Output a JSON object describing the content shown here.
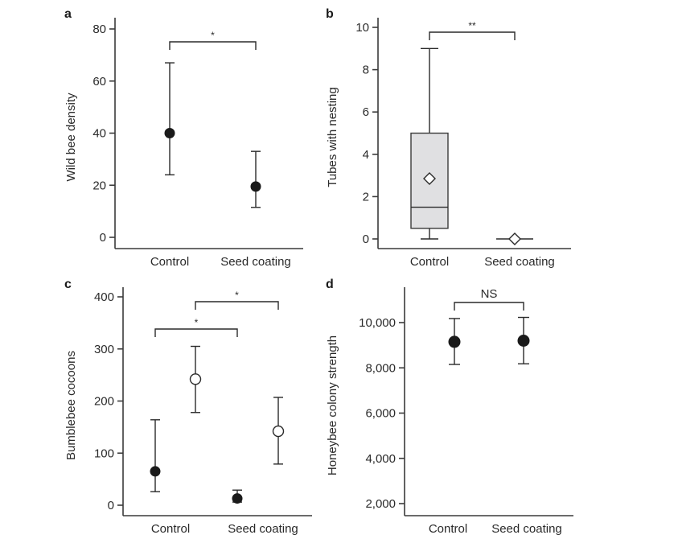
{
  "figure": {
    "panels": [
      "a",
      "b",
      "c",
      "d"
    ]
  },
  "chart_data": [
    {
      "panel": "a",
      "type": "scatter",
      "subtype": "mean-with-error-bars",
      "title": "",
      "xlabel": "",
      "ylabel": "Wild bee density",
      "categories": [
        "Control",
        "Seed coating"
      ],
      "ylim": [
        0,
        80
      ],
      "yticks": [
        0,
        20,
        40,
        60,
        80
      ],
      "ytick_labels": [
        "0",
        "20",
        "40",
        "60",
        "80"
      ],
      "grid": false,
      "series": [
        {
          "name": "Wild bee density",
          "marker": "filled-circle",
          "points": [
            {
              "category": "Control",
              "mean": 40,
              "lower": 24,
              "upper": 67
            },
            {
              "category": "Seed coating",
              "mean": 19.5,
              "lower": 11.5,
              "upper": 33
            }
          ]
        }
      ],
      "annotations": [
        {
          "type": "significance-bracket",
          "from": "Control",
          "to": "Seed coating",
          "label": "*"
        }
      ]
    },
    {
      "panel": "b",
      "type": "box",
      "title": "",
      "xlabel": "",
      "ylabel": "Tubes with nesting",
      "categories": [
        "Control",
        "Seed coating"
      ],
      "ylim": [
        0,
        10
      ],
      "yticks": [
        0,
        2,
        4,
        6,
        8,
        10
      ],
      "ytick_labels": [
        "0",
        "2",
        "4",
        "6",
        "8",
        "10"
      ],
      "grid": false,
      "series": [
        {
          "name": "Tubes with nesting",
          "boxes": [
            {
              "category": "Control",
              "min": 0,
              "q1": 0.5,
              "median": 1.5,
              "q3": 5,
              "max": 9,
              "mean": 2.85
            },
            {
              "category": "Seed coating",
              "min": 0,
              "q1": 0,
              "median": 0,
              "q3": 0,
              "max": 0,
              "mean": 0
            }
          ]
        }
      ],
      "annotations": [
        {
          "type": "significance-bracket",
          "from": "Control",
          "to": "Seed coating",
          "label": "**"
        }
      ]
    },
    {
      "panel": "c",
      "type": "scatter",
      "subtype": "mean-with-error-bars",
      "title": "",
      "xlabel": "",
      "ylabel": "Bumblebee cocoons",
      "categories": [
        "Control",
        "Seed coating"
      ],
      "ylim": [
        0,
        400
      ],
      "yticks": [
        0,
        100,
        200,
        300,
        400
      ],
      "ytick_labels": [
        "0",
        "100",
        "200",
        "300",
        "400"
      ],
      "grid": false,
      "series": [
        {
          "name": "filled",
          "marker": "filled-circle",
          "points": [
            {
              "category": "Control",
              "mean": 65,
              "lower": 26,
              "upper": 164
            },
            {
              "category": "Seed coating",
              "mean": 13,
              "lower": 6,
              "upper": 29
            }
          ]
        },
        {
          "name": "open",
          "marker": "open-circle",
          "points": [
            {
              "category": "Control",
              "mean": 242,
              "lower": 178,
              "upper": 305
            },
            {
              "category": "Seed coating",
              "mean": 142,
              "lower": 79,
              "upper": 207
            }
          ]
        }
      ],
      "annotations": [
        {
          "type": "significance-bracket",
          "from": "Control (filled)",
          "to": "Seed coating (filled)",
          "label": "*"
        },
        {
          "type": "significance-bracket",
          "from": "Control (open)",
          "to": "Seed coating (open)",
          "label": "*"
        }
      ]
    },
    {
      "panel": "d",
      "type": "scatter",
      "subtype": "mean-with-error-bars",
      "title": "",
      "xlabel": "",
      "ylabel": "Honeybee colony strength",
      "categories": [
        "Control",
        "Seed coating"
      ],
      "ylim": [
        2000,
        10000
      ],
      "yticks": [
        2000,
        4000,
        6000,
        8000,
        10000
      ],
      "ytick_labels": [
        "2,000",
        "4,000",
        "6,000",
        "8,000",
        "10,000"
      ],
      "grid": false,
      "series": [
        {
          "name": "Honeybee colony strength",
          "marker": "filled-circle",
          "points": [
            {
              "category": "Control",
              "mean": 9150,
              "lower": 8150,
              "upper": 10180
            },
            {
              "category": "Seed coating",
              "mean": 9200,
              "lower": 8180,
              "upper": 10230
            }
          ]
        }
      ],
      "annotations": [
        {
          "type": "significance-bracket",
          "from": "Control",
          "to": "Seed coating",
          "label": "NS"
        }
      ]
    }
  ]
}
